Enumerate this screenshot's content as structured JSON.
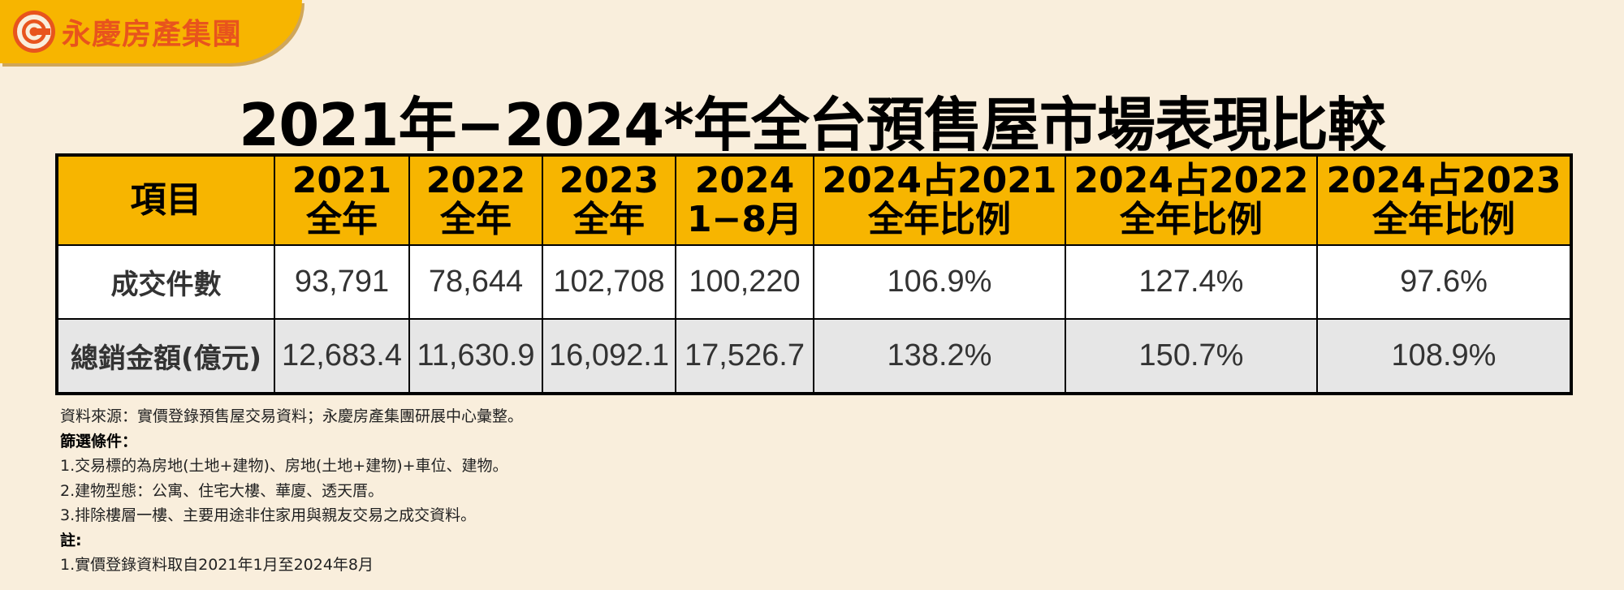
{
  "brand": {
    "name": "永慶房產集團",
    "logo_icon": "yungching-logo-icon",
    "accent": "#f7b500",
    "logo_color": "#e8541d"
  },
  "title": "2021年−2024*年全台預售屋市場表現比較",
  "chart_data": {
    "type": "table",
    "title": "2021年−2024*年全台預售屋市場表現比較",
    "columns": [
      {
        "line1": "項目",
        "line2": ""
      },
      {
        "line1": "2021",
        "line2": "全年"
      },
      {
        "line1": "2022",
        "line2": "全年"
      },
      {
        "line1": "2023",
        "line2": "全年"
      },
      {
        "line1": "2024",
        "line2": "1−8月"
      },
      {
        "line1": "2024占2021",
        "line2": "全年比例"
      },
      {
        "line1": "2024占2022",
        "line2": "全年比例"
      },
      {
        "line1": "2024占2023",
        "line2": "全年比例"
      }
    ],
    "rows": [
      {
        "label": "成交件數",
        "values": [
          "93,791",
          "78,644",
          "102,708",
          "100,220",
          "106.9%",
          "127.4%",
          "97.6%"
        ]
      },
      {
        "label": "總銷金額(億元)",
        "values": [
          "12,683.4",
          "11,630.9",
          "16,092.1",
          "17,526.7",
          "138.2%",
          "150.7%",
          "108.9%"
        ]
      }
    ],
    "header_color": "#f7b500",
    "row_colors": [
      "#ffffff",
      "#e6e6e6"
    ]
  },
  "notes": {
    "source": "資料來源：實價登錄預售屋交易資料；永慶房產集團研展中心彙整。",
    "filter_heading": "篩選條件：",
    "filters": [
      "1.交易標的為房地(土地+建物)、房地(土地+建物)+車位、建物。",
      "2.建物型態：公寓、住宅大樓、華廈、透天厝。",
      "3.排除樓層一樓、主要用途非住家用與親友交易之成交資料。"
    ],
    "note_heading": "註:",
    "notes_list": [
      "1.實價登錄資料取自2021年1月至2024年8月"
    ]
  }
}
